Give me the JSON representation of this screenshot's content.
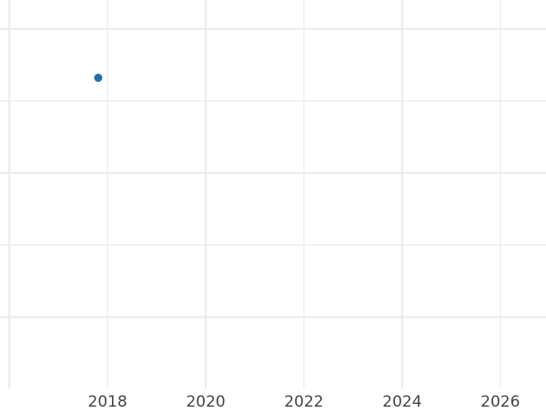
{
  "chart_data": {
    "type": "scatter",
    "title": "",
    "xlabel": "",
    "ylabel": "",
    "xlim": [
      2015.81,
      2026.93
    ],
    "ylim": [
      -0.99,
      4.4
    ],
    "x_ticks": [
      2016,
      2018,
      2020,
      2022,
      2024,
      2026
    ],
    "x_tick_labels": [
      "",
      "2018",
      "2020",
      "2022",
      "2024",
      "2026"
    ],
    "y_ticks": [
      0,
      1,
      2,
      3,
      4
    ],
    "y_tick_labels_shown": false,
    "grid": true,
    "points": [
      {
        "x": 2017.81,
        "y": 3.32
      }
    ],
    "colors": {
      "point": "#1f6fb4",
      "grid": "#ebebeb",
      "tick_label": "#444444"
    }
  }
}
